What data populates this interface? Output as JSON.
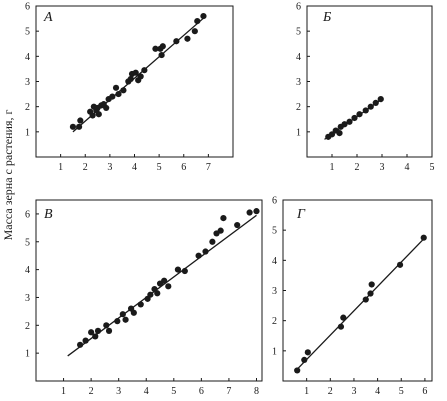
{
  "ylabel": "Масса зерна с растения, г",
  "chart_data": [
    {
      "type": "scatter",
      "panel_label": "А",
      "xlim": [
        0,
        8
      ],
      "ylim": [
        0,
        6
      ],
      "xticks": [
        1,
        2,
        3,
        4,
        5,
        6,
        7
      ],
      "yticks": [
        1,
        2,
        3,
        4,
        5,
        6
      ],
      "points": [
        [
          1.5,
          1.2
        ],
        [
          1.75,
          1.2
        ],
        [
          1.8,
          1.45
        ],
        [
          2.2,
          1.8
        ],
        [
          2.3,
          1.65
        ],
        [
          2.35,
          2.0
        ],
        [
          2.45,
          1.85
        ],
        [
          2.5,
          1.95
        ],
        [
          2.55,
          1.7
        ],
        [
          2.65,
          2.05
        ],
        [
          2.75,
          2.1
        ],
        [
          2.85,
          1.95
        ],
        [
          2.95,
          2.3
        ],
        [
          3.1,
          2.4
        ],
        [
          3.25,
          2.75
        ],
        [
          3.35,
          2.5
        ],
        [
          3.55,
          2.65
        ],
        [
          3.75,
          3.0
        ],
        [
          3.85,
          3.1
        ],
        [
          3.9,
          3.3
        ],
        [
          4.05,
          3.35
        ],
        [
          4.15,
          3.05
        ],
        [
          4.25,
          3.2
        ],
        [
          4.4,
          3.45
        ],
        [
          4.85,
          4.3
        ],
        [
          5.05,
          4.3
        ],
        [
          5.1,
          4.05
        ],
        [
          5.15,
          4.4
        ],
        [
          5.7,
          4.6
        ],
        [
          6.15,
          4.7
        ],
        [
          6.45,
          5.0
        ],
        [
          6.55,
          5.4
        ],
        [
          6.8,
          5.6
        ]
      ],
      "trend_line": [
        [
          1.5,
          1.0
        ],
        [
          6.9,
          5.6
        ]
      ]
    },
    {
      "type": "scatter",
      "panel_label": "Б",
      "xlim": [
        0,
        5
      ],
      "ylim": [
        0,
        6
      ],
      "xticks": [
        1,
        2,
        3,
        4,
        5
      ],
      "yticks": [
        1,
        2,
        3,
        4,
        5,
        6
      ],
      "points": [
        [
          0.85,
          0.8
        ],
        [
          1.0,
          0.9
        ],
        [
          1.15,
          1.05
        ],
        [
          1.3,
          0.95
        ],
        [
          1.35,
          1.2
        ],
        [
          1.5,
          1.3
        ],
        [
          1.7,
          1.4
        ],
        [
          1.9,
          1.55
        ],
        [
          2.1,
          1.7
        ],
        [
          2.35,
          1.85
        ],
        [
          2.55,
          2.0
        ],
        [
          2.75,
          2.15
        ],
        [
          2.95,
          2.3
        ]
      ],
      "trend_line": [
        [
          0.7,
          0.7
        ],
        [
          3.0,
          2.3
        ]
      ]
    },
    {
      "type": "scatter",
      "panel_label": "В",
      "xlim": [
        0,
        8.2
      ],
      "ylim": [
        0,
        6.5
      ],
      "xticks": [
        1,
        2,
        3,
        4,
        5,
        6,
        7,
        8
      ],
      "yticks": [
        1,
        2,
        3,
        4,
        5,
        6
      ],
      "points": [
        [
          1.6,
          1.3
        ],
        [
          1.8,
          1.45
        ],
        [
          2.0,
          1.75
        ],
        [
          2.15,
          1.6
        ],
        [
          2.25,
          1.8
        ],
        [
          2.55,
          2.0
        ],
        [
          2.65,
          1.8
        ],
        [
          2.95,
          2.15
        ],
        [
          3.15,
          2.4
        ],
        [
          3.25,
          2.2
        ],
        [
          3.45,
          2.6
        ],
        [
          3.55,
          2.45
        ],
        [
          3.8,
          2.75
        ],
        [
          4.05,
          2.95
        ],
        [
          4.15,
          3.1
        ],
        [
          4.3,
          3.3
        ],
        [
          4.4,
          3.15
        ],
        [
          4.5,
          3.5
        ],
        [
          4.65,
          3.6
        ],
        [
          4.8,
          3.4
        ],
        [
          5.15,
          4.0
        ],
        [
          5.4,
          3.95
        ],
        [
          5.9,
          4.5
        ],
        [
          6.15,
          4.65
        ],
        [
          6.4,
          5.0
        ],
        [
          6.55,
          5.3
        ],
        [
          6.7,
          5.4
        ],
        [
          6.8,
          5.85
        ],
        [
          7.3,
          5.6
        ],
        [
          7.75,
          6.05
        ],
        [
          8.0,
          6.1
        ]
      ],
      "trend_line": [
        [
          1.15,
          0.9
        ],
        [
          8.0,
          5.95
        ]
      ]
    },
    {
      "type": "scatter",
      "panel_label": "Г",
      "xlim": [
        0,
        6.3
      ],
      "ylim": [
        0,
        6
      ],
      "xticks": [
        1,
        2,
        3,
        4,
        5,
        6
      ],
      "yticks": [
        1,
        2,
        3,
        4,
        5,
        6
      ],
      "points": [
        [
          0.6,
          0.35
        ],
        [
          0.9,
          0.7
        ],
        [
          1.05,
          0.95
        ],
        [
          2.45,
          1.8
        ],
        [
          2.55,
          2.1
        ],
        [
          3.5,
          2.7
        ],
        [
          3.7,
          2.9
        ],
        [
          3.75,
          3.2
        ],
        [
          4.95,
          3.85
        ],
        [
          5.95,
          4.75
        ]
      ],
      "trend_line": [
        [
          0.55,
          0.35
        ],
        [
          6.0,
          4.75
        ]
      ]
    }
  ]
}
